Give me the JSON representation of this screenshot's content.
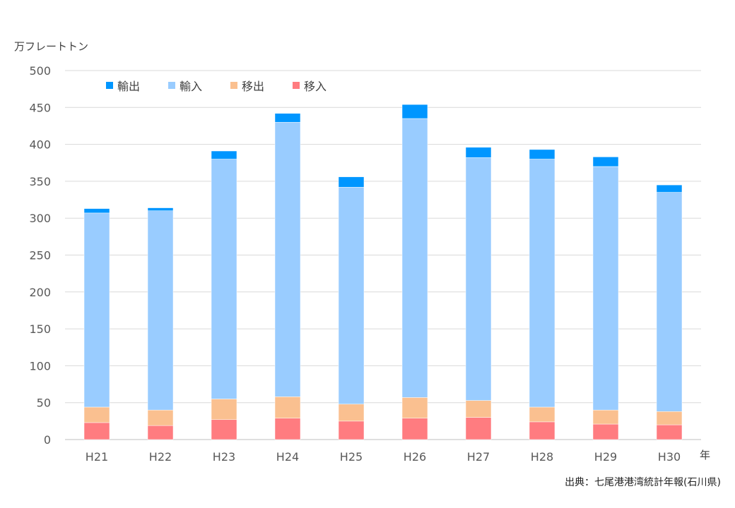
{
  "chart_data": {
    "type": "bar",
    "stacked": true,
    "ylabel": "万フレートトン",
    "xlabel": "年",
    "source": "出典：七尾港港湾統計年報(石川県)",
    "categories": [
      "H21",
      "H22",
      "H23",
      "H24",
      "H25",
      "H26",
      "H27",
      "H28",
      "H29",
      "H30"
    ],
    "ylim": [
      0,
      500
    ],
    "yticks": [
      0,
      50,
      100,
      150,
      200,
      250,
      300,
      350,
      400,
      450,
      500
    ],
    "grid": true,
    "legend_position": "top-left",
    "series": [
      {
        "name": "移入",
        "color": "#ff7c80",
        "values": [
          23,
          19,
          27,
          29,
          25,
          29,
          30,
          24,
          21,
          20
        ]
      },
      {
        "name": "移出",
        "color": "#fac090",
        "values": [
          21,
          21,
          28,
          29,
          23,
          28,
          23,
          20,
          19,
          18
        ]
      },
      {
        "name": "輸入",
        "color": "#99ccff",
        "values": [
          263,
          270,
          325,
          372,
          294,
          378,
          329,
          336,
          330,
          297
        ]
      },
      {
        "name": "輸出",
        "color": "#0096ff",
        "values": [
          6,
          4,
          11,
          12,
          14,
          19,
          14,
          13,
          13,
          10
        ]
      }
    ],
    "legend_order": [
      "輸出",
      "輸入",
      "移出",
      "移入"
    ]
  }
}
